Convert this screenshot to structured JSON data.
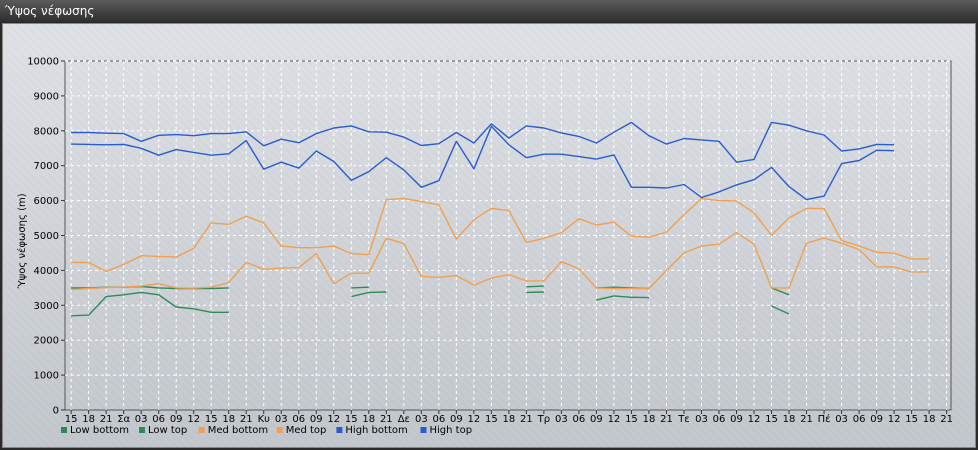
{
  "window": {
    "title": "Ύψος νέφωσης"
  },
  "chart_data": {
    "type": "line",
    "ylabel": "Ύψος νέφωσης (m)",
    "ylim": [
      0,
      10000
    ],
    "yticks": [
      0,
      1000,
      2000,
      3000,
      4000,
      5000,
      6000,
      7000,
      8000,
      9000,
      10000
    ],
    "grid": true,
    "legend_position": "bottom-left",
    "categories": [
      "15",
      "18",
      "21",
      "Σα",
      "03",
      "06",
      "09",
      "12",
      "15",
      "18",
      "21",
      "Κυ",
      "03",
      "06",
      "09",
      "12",
      "15",
      "18",
      "21",
      "Δε",
      "03",
      "06",
      "09",
      "12",
      "15",
      "18",
      "21",
      "Τρ",
      "03",
      "06",
      "09",
      "12",
      "15",
      "18",
      "21",
      "Τε",
      "03",
      "06",
      "09",
      "12",
      "15",
      "18",
      "21",
      "Πέ",
      "03",
      "06",
      "09",
      "12",
      "15",
      "18",
      "21"
    ],
    "series": [
      {
        "name": "Low bottom",
        "color": "#2e8b57",
        "values": [
          3500,
          3500,
          3520,
          3520,
          3540,
          3500,
          3480,
          3480,
          3480,
          3500,
          null,
          null,
          null,
          null,
          null,
          null,
          3500,
          3520,
          null,
          null,
          null,
          null,
          null,
          null,
          null,
          null,
          3530,
          3550,
          null,
          null,
          3500,
          3520,
          3500,
          3480,
          null,
          null,
          null,
          null,
          null,
          null,
          3500,
          3300,
          null,
          null,
          null,
          null,
          null,
          null,
          null,
          null,
          null
        ]
      },
      {
        "name": "Low top",
        "color": "#2e8b57",
        "values": [
          2700,
          2720,
          3250,
          3300,
          3370,
          3300,
          2950,
          2900,
          2800,
          2800,
          null,
          null,
          null,
          null,
          null,
          null,
          3250,
          3370,
          3380,
          null,
          null,
          null,
          null,
          null,
          null,
          null,
          3370,
          3380,
          null,
          null,
          3150,
          3270,
          3230,
          3220,
          null,
          null,
          null,
          null,
          null,
          null,
          2980,
          2750,
          null,
          null,
          null,
          null,
          null,
          null,
          null,
          null,
          null
        ]
      },
      {
        "name": "Med bottom",
        "color": "#f0a050",
        "values": [
          3450,
          3480,
          3510,
          3520,
          3550,
          3620,
          3500,
          3490,
          3520,
          3650,
          4230,
          4030,
          4070,
          4080,
          4480,
          3620,
          3920,
          3920,
          4920,
          4770,
          3830,
          3800,
          3850,
          3580,
          3780,
          3880,
          3700,
          3700,
          4250,
          4050,
          3500,
          3480,
          3480,
          3480,
          4000,
          4500,
          4700,
          4750,
          5080,
          4750,
          3500,
          3500,
          4780,
          4930,
          4780,
          4600,
          4100,
          4100,
          3950,
          3960,
          null
        ]
      },
      {
        "name": "Med top",
        "color": "#f0a050",
        "values": [
          4230,
          4230,
          3970,
          4170,
          4420,
          4400,
          4380,
          4630,
          5360,
          5320,
          5550,
          5360,
          4700,
          4650,
          4650,
          4700,
          4480,
          4450,
          6030,
          6060,
          5970,
          5880,
          4900,
          5450,
          5780,
          5710,
          4800,
          4920,
          5080,
          5480,
          5300,
          5380,
          4980,
          4950,
          5100,
          5600,
          6060,
          6000,
          5990,
          5650,
          5010,
          5500,
          5780,
          5770,
          4860,
          4700,
          4520,
          4490,
          4330,
          4330,
          null
        ]
      },
      {
        "name": "High bottom",
        "color": "#2a5cd0",
        "values": [
          7620,
          7610,
          7600,
          7610,
          7500,
          7300,
          7460,
          7380,
          7300,
          7340,
          7720,
          6900,
          7100,
          6930,
          7420,
          7120,
          6580,
          6830,
          7230,
          6880,
          6380,
          6570,
          7700,
          6910,
          8130,
          7600,
          7230,
          7330,
          7330,
          7260,
          7190,
          7310,
          6380,
          6380,
          6360,
          6460,
          6090,
          6250,
          6450,
          6600,
          6950,
          6400,
          6030,
          6130,
          7060,
          7150,
          7440,
          7430,
          null,
          null,
          null
        ]
      },
      {
        "name": "High top",
        "color": "#2a5cd0",
        "values": [
          7950,
          7950,
          7930,
          7920,
          7700,
          7870,
          7890,
          7860,
          7920,
          7920,
          7970,
          7570,
          7760,
          7660,
          7920,
          8080,
          8140,
          7970,
          7960,
          7820,
          7580,
          7630,
          7950,
          7650,
          8200,
          7790,
          8140,
          8080,
          7940,
          7840,
          7650,
          7960,
          8240,
          7860,
          7620,
          7780,
          7740,
          7700,
          7100,
          7180,
          8240,
          8160,
          8000,
          7880,
          7420,
          7480,
          7610,
          7600,
          null,
          null,
          null
        ]
      }
    ]
  }
}
